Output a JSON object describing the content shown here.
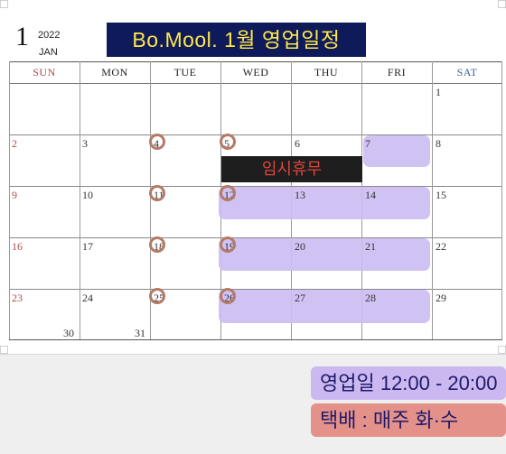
{
  "header": {
    "month_number": "1",
    "year": "2022",
    "month_abbr": "JAN",
    "title": "Bo.Mool. 1월 영업일정"
  },
  "weekdays": [
    "SUN",
    "MON",
    "TUE",
    "WED",
    "THU",
    "FRI",
    "SAT"
  ],
  "weeks": [
    [
      "",
      "",
      "",
      "",
      "",
      "",
      "1"
    ],
    [
      "2",
      "3",
      "4",
      "5",
      "6",
      "7",
      "8"
    ],
    [
      "9",
      "10",
      "11",
      "12",
      "13",
      "14",
      "15"
    ],
    [
      "16",
      "17",
      "18",
      "19",
      "20",
      "21",
      "22"
    ],
    [
      "23",
      "24",
      "25",
      "26",
      "27",
      "28",
      "29"
    ]
  ],
  "extra_dates": {
    "sun": "30",
    "mon": "31"
  },
  "closure_label": "임시휴무",
  "notes": {
    "hours": "영업일 12:00 - 20:00",
    "delivery": "택배 : 매주 화·수"
  },
  "colors": {
    "title_bg": "#0f1a5a",
    "title_text": "#ffe84a",
    "highlight": "#cdbdf3",
    "circle": "#b57a66",
    "closure_bg": "#1e1e1e",
    "closure_text": "#e0443b",
    "hours_bg": "#cbb8f0",
    "delivery_bg": "#e49189"
  }
}
